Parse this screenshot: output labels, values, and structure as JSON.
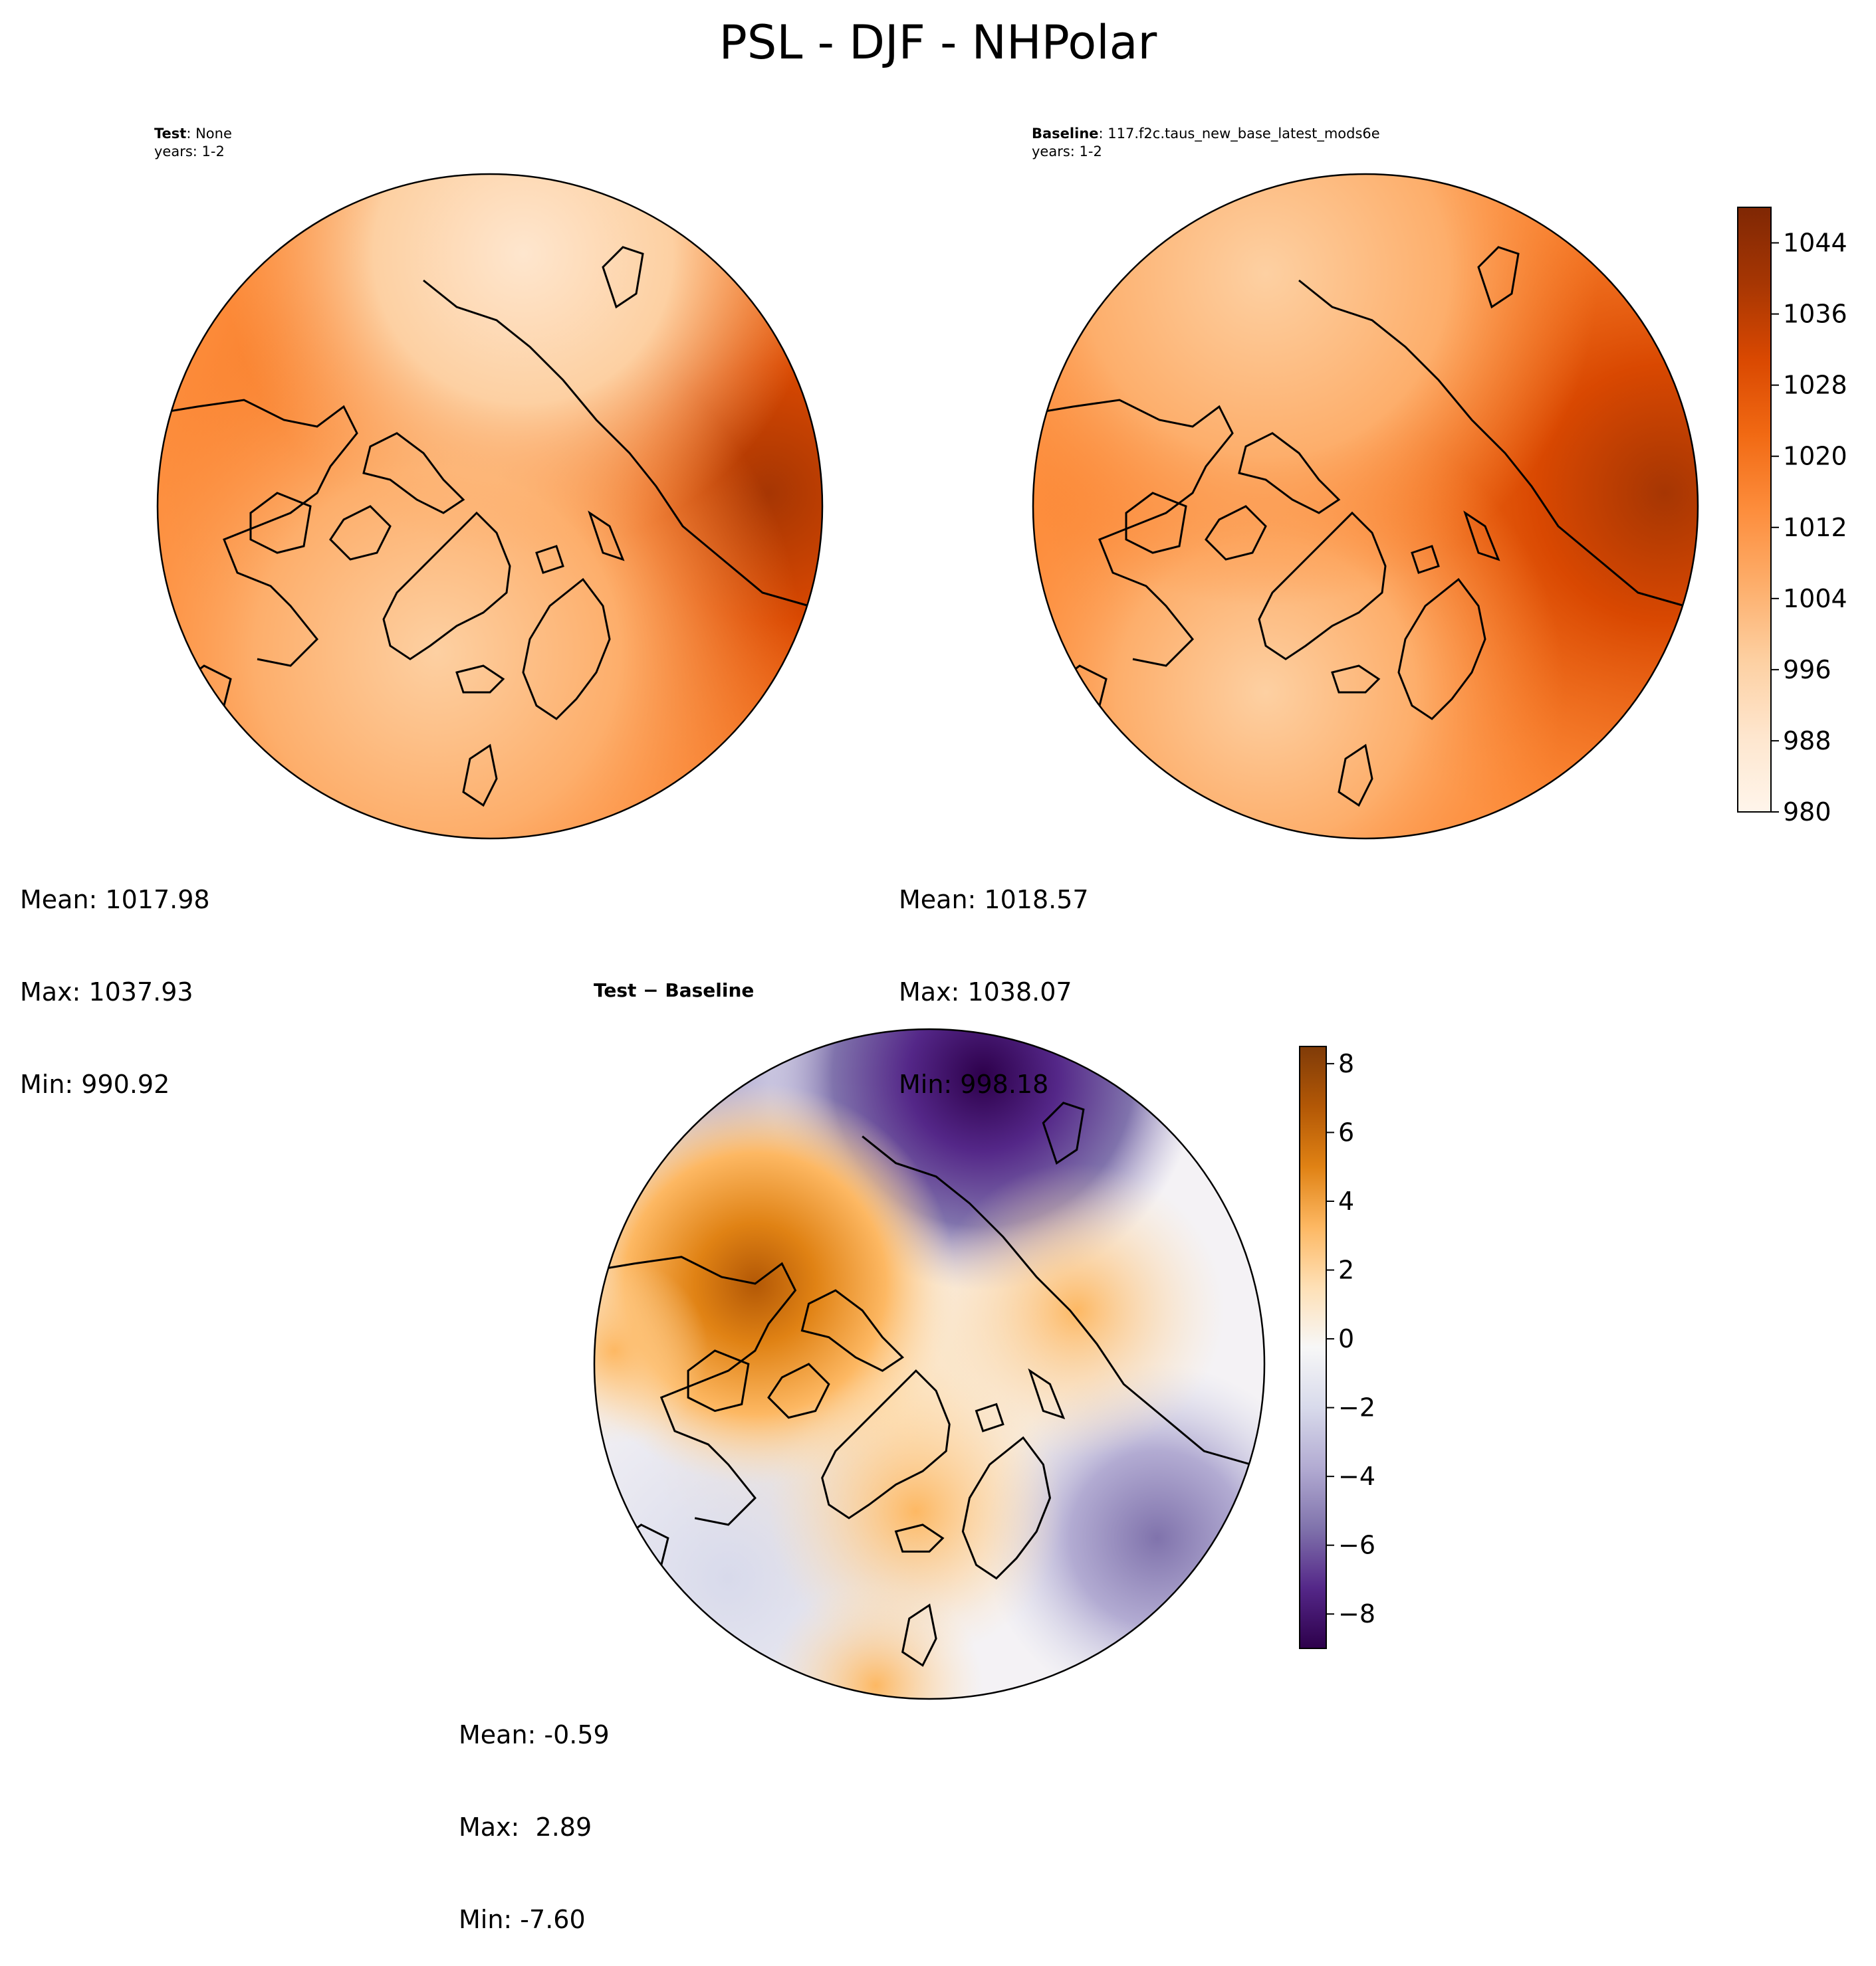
{
  "figure": {
    "title": "PSL - DJF - NHPolar"
  },
  "panels": {
    "test": {
      "label_bold": "Test",
      "label_value": ": None",
      "years": "years: 1-2",
      "stats": {
        "mean": "Mean: 1017.98",
        "max": "Max: 1037.93",
        "min": "Min: 990.92"
      }
    },
    "baseline": {
      "label_bold": "Baseline",
      "label_value": ": 117.f2c.taus_new_base_latest_mods6e",
      "years": "years: 1-2",
      "stats": {
        "mean": "Mean: 1018.57",
        "max": "Max: 1038.07",
        "min": "Min: 998.18"
      }
    },
    "diff": {
      "label_bold": "Test − Baseline",
      "stats": {
        "mean": "Mean: -0.59",
        "max": "Max:  2.89",
        "min": "Min: -7.60"
      }
    }
  },
  "colors": {
    "oranges": [
      "#fff5eb",
      "#fee6ce",
      "#fdd0a2",
      "#fdae6b",
      "#fd8d3c",
      "#f16913",
      "#d94801",
      "#a63603",
      "#7f2704"
    ],
    "puor": [
      "#2d004b",
      "#542788",
      "#8073ac",
      "#b2abd2",
      "#d8daeb",
      "#f7f7f7",
      "#fee0b6",
      "#fdb863",
      "#e08214",
      "#b35806",
      "#7f3b08"
    ]
  },
  "chart_data": [
    {
      "type": "heatmap",
      "name": "test-psl-map",
      "projection": "north-polar-stereographic",
      "variable": "PSL",
      "season": "DJF",
      "colorbar_ticks": [
        "980",
        "988",
        "996",
        "1004",
        "1012",
        "1020",
        "1028",
        "1036",
        "1044"
      ],
      "colorbar_range": [
        980,
        1048
      ]
    },
    {
      "type": "heatmap",
      "name": "baseline-psl-map",
      "projection": "north-polar-stereographic",
      "variable": "PSL",
      "season": "DJF"
    },
    {
      "type": "heatmap",
      "name": "difference-psl-map",
      "projection": "north-polar-stereographic",
      "variable": "PSL",
      "season": "DJF",
      "colorbar_ticks": [
        "8",
        "6",
        "4",
        "2",
        "0",
        "−2",
        "−4",
        "−6",
        "−8"
      ],
      "colorbar_range": [
        -9,
        8.5
      ]
    }
  ]
}
